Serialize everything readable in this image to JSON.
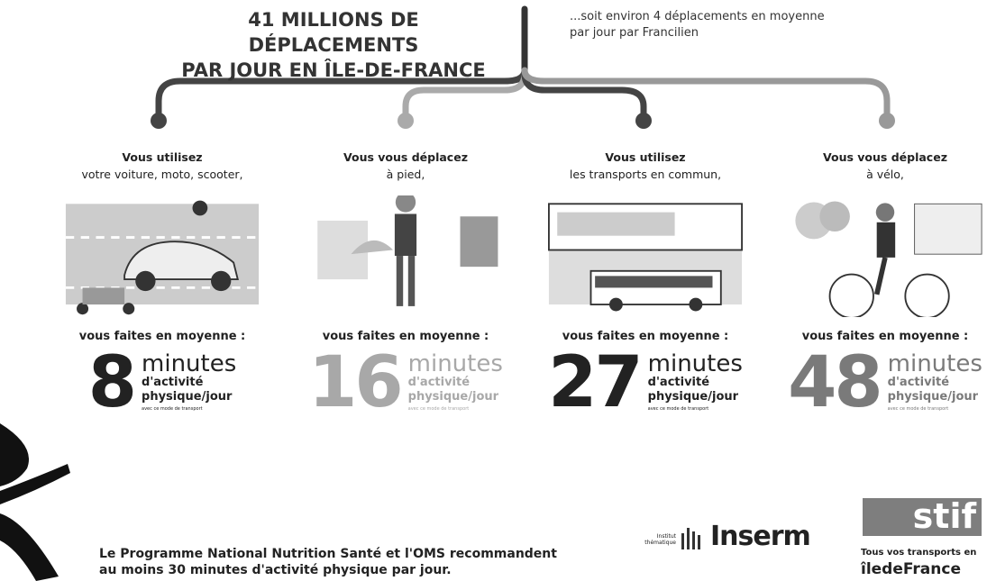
{
  "header": {
    "title": [
      "41 MILLIONS DE DÉPLACEMENTS",
      "PAR JOUR EN ÎLE-DE-FRANCE"
    ],
    "subtitle": [
      "...soit environ 4 déplacements en moyenne",
      "par jour par Francilien"
    ]
  },
  "modes": [
    {
      "intro": [
        "Vous utilisez",
        "votre voiture, moto, scooter,"
      ],
      "lead": "vous faites en moyenne :",
      "number": "8",
      "unit": "minutes",
      "detail": [
        "d'activité",
        "physique/jour"
      ],
      "note": "avec ce mode de transport",
      "color": "#222222"
    },
    {
      "intro": [
        "Vous vous déplacez",
        "à pied,"
      ],
      "lead": "vous faites en moyenne :",
      "number": "16",
      "unit": "minutes",
      "detail": [
        "d'activité",
        "physique/jour"
      ],
      "note": "avec ce mode de transport",
      "color": "#a8a8a8"
    },
    {
      "intro": [
        "Vous utilisez",
        "les transports en commun,"
      ],
      "lead": "vous faites en moyenne :",
      "number": "27",
      "unit": "minutes",
      "detail": [
        "d'activité",
        "physique/jour"
      ],
      "note": "avec ce mode de transport",
      "color": "#222222"
    },
    {
      "intro": [
        "Vous vous déplacez",
        "à vélo,"
      ],
      "lead": "vous faites en moyenne :",
      "number": "48",
      "unit": "minutes",
      "detail": [
        "d'activité",
        "physique/jour"
      ],
      "note": "avec ce mode de transport",
      "color": "#7a7a7a"
    }
  ],
  "footer": {
    "text": [
      "Le Programme National Nutrition Santé et l'OMS recommandent",
      "au moins 30 minutes d'activité physique par jour."
    ]
  },
  "logos": {
    "itmo": "Institut thématique",
    "inserm": "Inserm",
    "stif": "stif",
    "stif_tagline": "Tous vos transports en",
    "idf": "îledeFrance"
  }
}
